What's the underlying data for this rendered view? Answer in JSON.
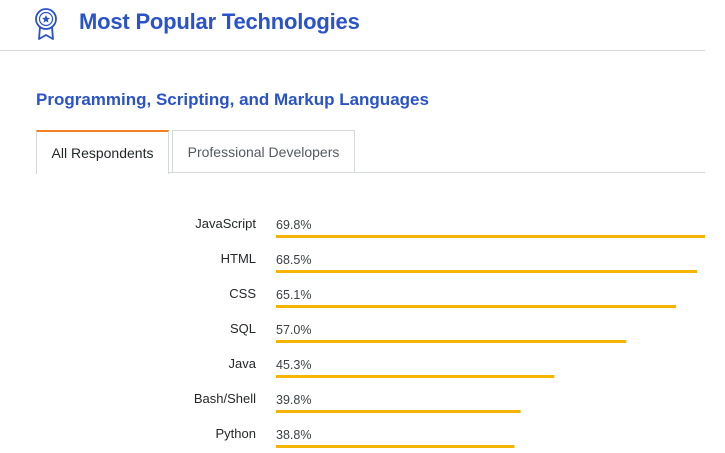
{
  "header": {
    "title": "Most Popular Technologies",
    "icon": "award-ribbon-icon"
  },
  "section": {
    "title": "Programming, Scripting, and Markup Languages"
  },
  "tabs": [
    {
      "label": "All Respondents",
      "active": true
    },
    {
      "label": "Professional Developers",
      "active": false
    }
  ],
  "colors": {
    "accent": "#2a52c9",
    "bar": "#f4b400",
    "tab_active": "#f48024"
  },
  "chart_data": {
    "type": "bar",
    "orientation": "horizontal",
    "categories": [
      "JavaScript",
      "HTML",
      "CSS",
      "SQL",
      "Java",
      "Bash/Shell",
      "Python"
    ],
    "values": [
      69.8,
      68.5,
      65.1,
      57.0,
      45.3,
      39.8,
      38.8
    ],
    "value_labels": [
      "69.8%",
      "68.5%",
      "65.1%",
      "57.0%",
      "45.3%",
      "39.8%",
      "38.8%"
    ],
    "xlim": [
      0,
      69.8
    ],
    "grid": false,
    "legend": "none"
  }
}
